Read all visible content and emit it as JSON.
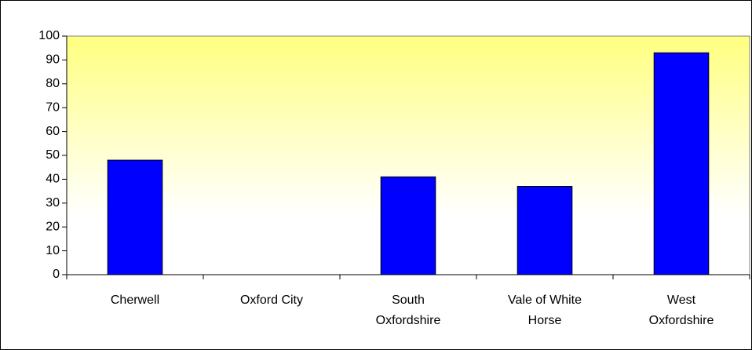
{
  "chart_data": {
    "type": "bar",
    "categories": [
      "Cherwell",
      "Oxford City",
      "South Oxfordshire",
      "Vale of White Horse",
      "West Oxfordshire"
    ],
    "values": [
      48,
      null,
      41,
      37,
      93
    ],
    "color": "#0000ff",
    "ylim": [
      0,
      100
    ],
    "yticks": [
      0,
      10,
      20,
      30,
      40,
      50,
      60,
      70,
      80,
      90,
      100
    ]
  }
}
